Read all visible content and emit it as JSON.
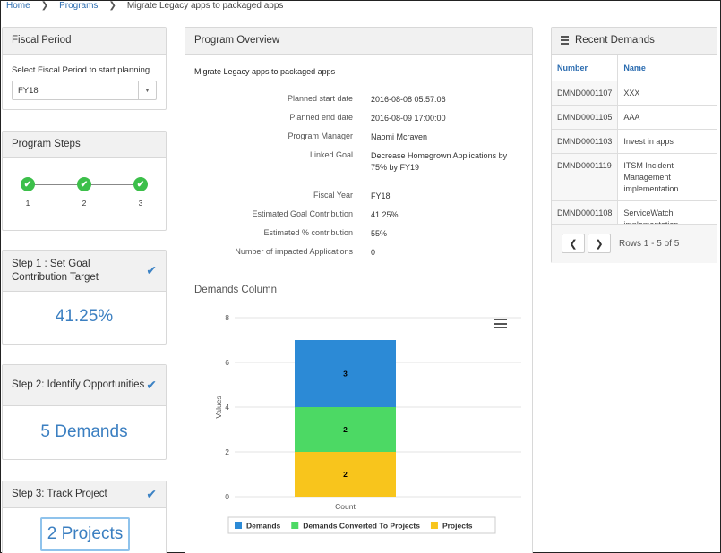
{
  "breadcrumb": {
    "home": "Home",
    "programs": "Programs",
    "current": "Migrate Legacy apps to packaged apps"
  },
  "fiscal": {
    "title": "Fiscal Period",
    "label": "Select Fiscal Period to start planning",
    "selected": "FY18"
  },
  "steps": {
    "title": "Program Steps",
    "nodes": [
      "1",
      "2",
      "3"
    ]
  },
  "step1": {
    "title": "Step 1 : Set Goal Contribution Target",
    "value": "41.25%"
  },
  "step2": {
    "title": "Step 2: Identify Opportunities",
    "value": "5 Demands"
  },
  "step3": {
    "title": "Step 3: Track Project",
    "value": "2 Projects"
  },
  "overview": {
    "title": "Program Overview",
    "program_name": "Migrate Legacy apps to packaged apps",
    "fields": [
      {
        "key": "Planned start date",
        "value": "2016-08-08 05:57:06"
      },
      {
        "key": "Planned end date",
        "value": "2016-08-09 17:00:00"
      },
      {
        "key": "Program Manager",
        "value": "Naomi Mcraven"
      },
      {
        "key": "Linked Goal",
        "value": "Decrease Homegrown Applications by 75% by FY19"
      },
      {
        "key": "Fiscal Year",
        "value": "FY18"
      },
      {
        "key": "Estimated Goal Contribution",
        "value": "41.25%"
      },
      {
        "key": "Estimated % contribution",
        "value": "55%"
      },
      {
        "key": "Number of impacted Applications",
        "value": "0"
      }
    ],
    "chart_title": "Demands Column"
  },
  "chart_data": {
    "type": "bar",
    "stacked": true,
    "categories": [
      "Count"
    ],
    "series": [
      {
        "name": "Demands",
        "values": [
          3
        ],
        "color": "#2c8ad6"
      },
      {
        "name": "Demands Converted To Projects",
        "values": [
          2
        ],
        "color": "#4cd964"
      },
      {
        "name": "Projects",
        "values": [
          2
        ],
        "color": "#f8c51c"
      }
    ],
    "ylabel": "Values",
    "ylim": [
      0,
      8
    ],
    "yticks": [
      "0",
      "2",
      "4",
      "6",
      "8"
    ],
    "legend": "bottom"
  },
  "recent": {
    "title": "Recent Demands",
    "headers": [
      "Number",
      "Name"
    ],
    "rows": [
      {
        "number": "DMND0001107",
        "name": "XXX"
      },
      {
        "number": "DMND0001105",
        "name": "AAA"
      },
      {
        "number": "DMND0001103",
        "name": "Invest in apps"
      },
      {
        "number": "DMND0001119",
        "name": "ITSM Incident Management implementation"
      },
      {
        "number": "DMND0001108",
        "name": "ServiceWatch implementation"
      }
    ],
    "prev": "❮",
    "next": "❯",
    "rows_text": "Rows 1 - 5 of 5"
  },
  "icons": {
    "check": "✔",
    "chevron": "❯",
    "caret": "▼"
  }
}
